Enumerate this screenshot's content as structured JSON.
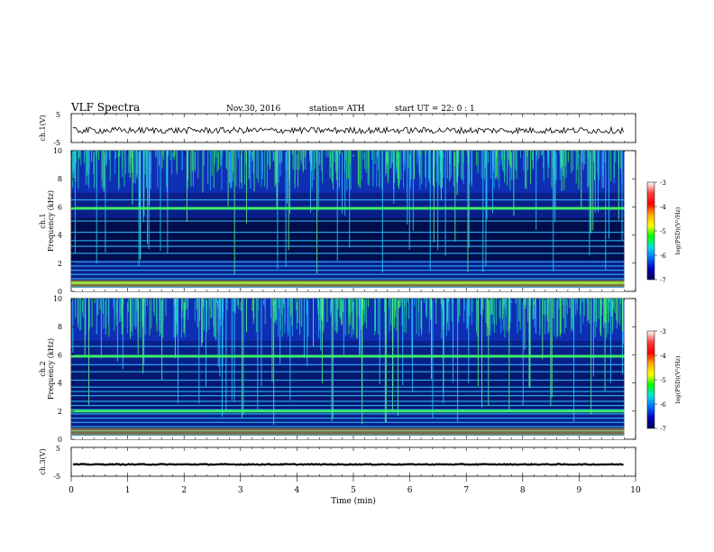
{
  "header": {
    "title": "VLF  Spectra",
    "date": "Nov.30, 2016",
    "station": "station= ATH",
    "start": "start  UT  =   22: 0  : 1"
  },
  "panels": {
    "ch1v_label": "ch.1(V)",
    "ch1_label": "ch.1",
    "ch2_label": "ch.2",
    "ch3v_label": "ch.3(V)",
    "freq_label": "Frequency  (kHz)",
    "xlabel": "Time  (min)"
  },
  "colorbar": {
    "label": "log(PSD)(V²/Hz)",
    "ticks": [
      "-3",
      "-4",
      "-5",
      "-6",
      "-7"
    ],
    "colors": [
      "#ffffff",
      "#ff4040",
      "#ff0000",
      "#ffaa00",
      "#ffff00",
      "#00ff00",
      "#00e0e0",
      "#0070ff",
      "#0000c0",
      "#000050"
    ]
  },
  "chart_data": [
    {
      "type": "line",
      "name": "ch.1(V)",
      "ylim": [
        -5,
        5
      ],
      "yticks": [
        "5",
        "-5"
      ],
      "xlim": [
        0,
        10
      ],
      "baseline": -0.8
    },
    {
      "type": "heatmap",
      "name": "ch.1",
      "ylabel": "Frequency  (kHz)",
      "ylim": [
        0,
        10
      ],
      "yticks": [
        "10",
        "8",
        "6",
        "4",
        "2",
        "0"
      ],
      "xlim": [
        0,
        9.8
      ],
      "bands_khz": [
        0.3,
        0.6,
        0.9,
        1.2,
        1.5,
        1.8,
        2.1,
        2.7,
        3.2,
        3.6,
        4.2,
        5.0,
        5.9,
        6.5
      ],
      "strong_bands_khz": [
        0.6,
        5.9
      ]
    },
    {
      "type": "heatmap",
      "name": "ch.2",
      "ylabel": "Frequency  (kHz)",
      "ylim": [
        0,
        10
      ],
      "yticks": [
        "10",
        "8",
        "6",
        "4",
        "2",
        "0"
      ],
      "xlim": [
        0,
        9.8
      ],
      "bands_khz": [
        0.3,
        0.6,
        0.9,
        1.2,
        1.5,
        1.8,
        2.1,
        2.4,
        2.7,
        3.1,
        3.4,
        3.7,
        4.2,
        4.8,
        5.3,
        5.9,
        6.6
      ],
      "strong_bands_khz": [
        2.0,
        5.9
      ]
    },
    {
      "type": "line",
      "name": "ch.3(V)",
      "ylim": [
        -5,
        5
      ],
      "yticks": [
        "5",
        "-5"
      ],
      "xlim": [
        0,
        10
      ],
      "baseline": -0.9
    },
    {
      "type": "axis",
      "xlabel": "Time  (min)",
      "xlim": [
        0,
        10
      ],
      "xticks": [
        "0",
        "1",
        "2",
        "3",
        "4",
        "5",
        "6",
        "7",
        "8",
        "9",
        "10"
      ]
    }
  ]
}
